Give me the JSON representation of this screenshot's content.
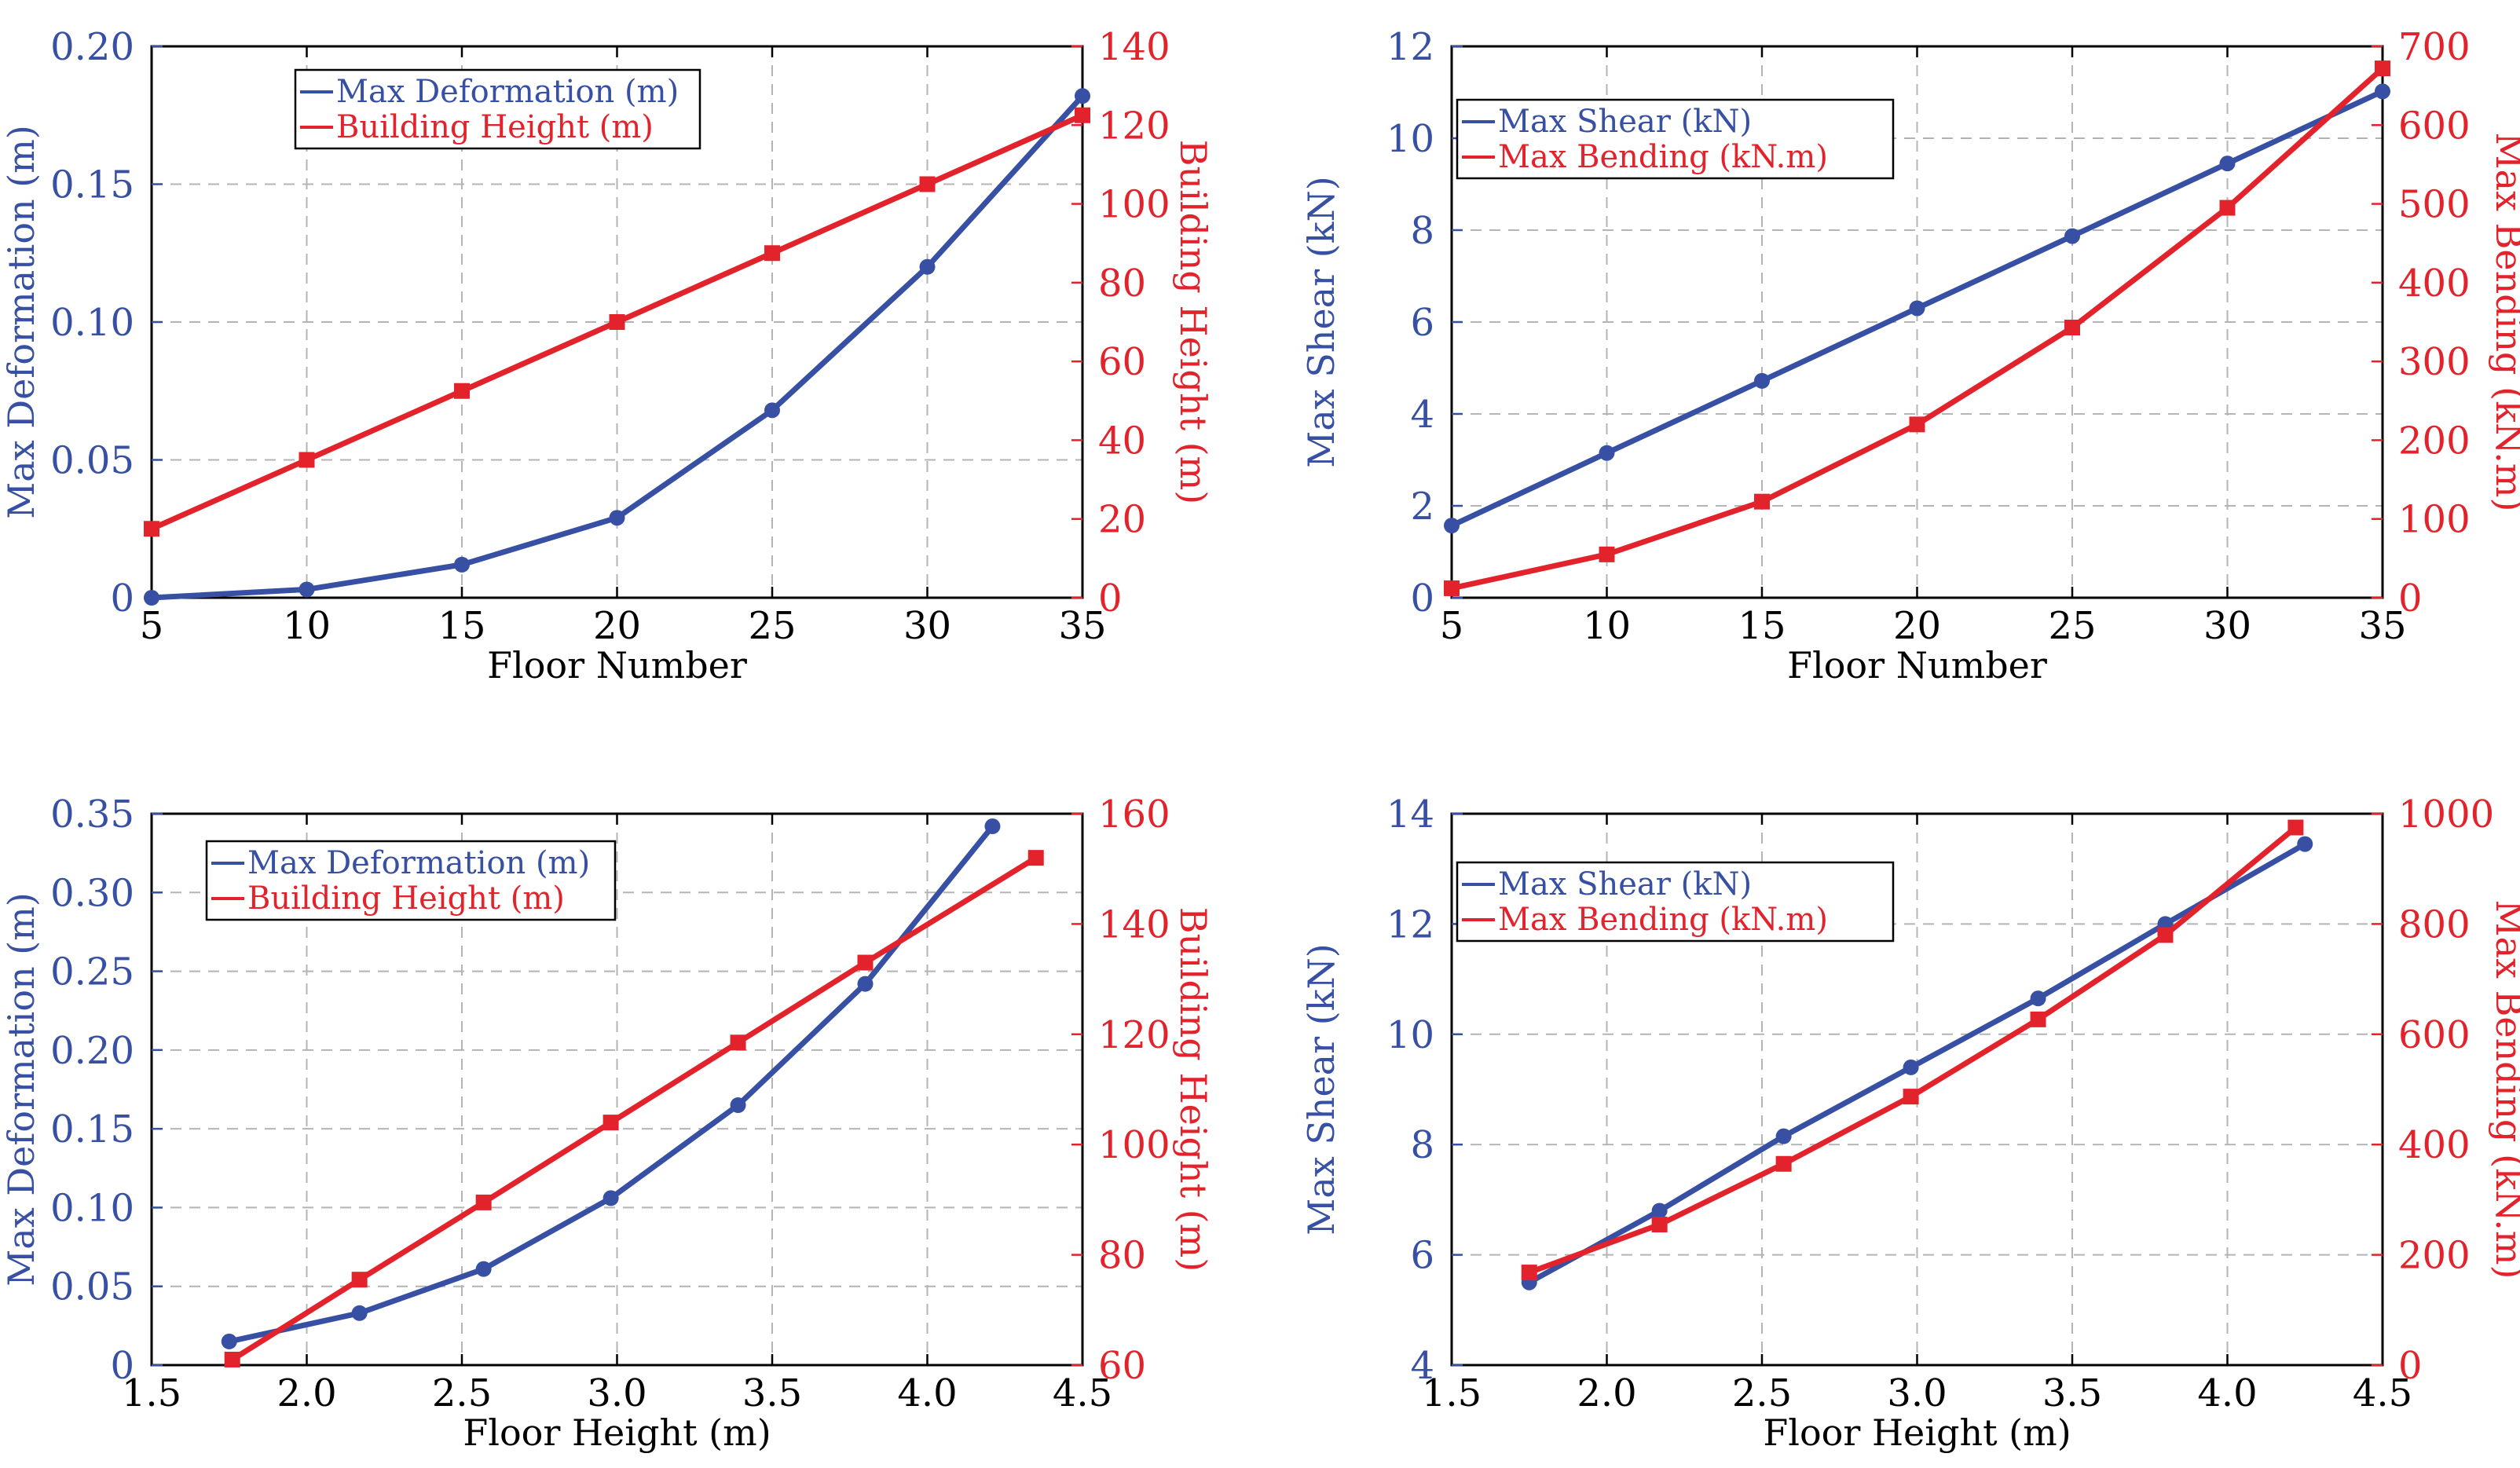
{
  "colors": {
    "blue": "#3750a3",
    "red": "#e3232c",
    "grid": "#b4b4b4",
    "axis": "#000000"
  },
  "chart_data": [
    {
      "type": "line",
      "panel": "top-left",
      "xlabel": "Floor Number",
      "ylabel_left": "Max Deformation (m)",
      "ylabel_right": "Building Height (m)",
      "xlim": [
        5,
        35
      ],
      "xticks": [
        "5",
        "10",
        "15",
        "20",
        "25",
        "30",
        "35"
      ],
      "ylim_left": [
        0,
        0.2
      ],
      "yticks_left": [
        "0",
        "0.05",
        "0.10",
        "0.15",
        "0.20"
      ],
      "ylim_right": [
        0,
        140
      ],
      "yticks_right": [
        "0",
        "20",
        "40",
        "60",
        "80",
        "100",
        "120",
        "140"
      ],
      "grid": true,
      "legend": "top-center",
      "series": [
        {
          "name": "Max Deformation (m)",
          "axis": "left",
          "color": "#3750a3",
          "marker": "circle",
          "x": [
            5,
            10,
            15,
            20,
            25,
            30,
            35
          ],
          "y": [
            0.0,
            0.003,
            0.012,
            0.029,
            0.068,
            0.12,
            0.182
          ]
        },
        {
          "name": "Building Height (m)",
          "axis": "right",
          "color": "#e3232c",
          "marker": "square",
          "x": [
            5,
            10,
            15,
            20,
            25,
            30,
            35
          ],
          "y": [
            17.5,
            35,
            52.5,
            70,
            87.5,
            105,
            122.5
          ]
        }
      ]
    },
    {
      "type": "line",
      "panel": "top-right",
      "xlabel": "Floor Number",
      "ylabel_left": "Max Shear (kN)",
      "ylabel_right": "Max Bending (kN.m)",
      "xlim": [
        5,
        35
      ],
      "xticks": [
        "5",
        "10",
        "15",
        "20",
        "25",
        "30",
        "35"
      ],
      "ylim_left": [
        0,
        12
      ],
      "yticks_left": [
        "0",
        "2",
        "4",
        "6",
        "8",
        "10",
        "12"
      ],
      "ylim_right": [
        0,
        700
      ],
      "yticks_right": [
        "0",
        "100",
        "200",
        "300",
        "400",
        "500",
        "600",
        "700"
      ],
      "grid": true,
      "legend": "top-left",
      "series": [
        {
          "name": "Max Shear (kN)",
          "axis": "left",
          "color": "#3750a3",
          "marker": "circle",
          "x": [
            5,
            10,
            15,
            20,
            25,
            30,
            35
          ],
          "y": [
            1.57,
            3.15,
            4.72,
            6.3,
            7.87,
            9.45,
            11.02
          ]
        },
        {
          "name": "Max Bending (kN.m)",
          "axis": "right",
          "color": "#e3232c",
          "marker": "square",
          "x": [
            5,
            10,
            15,
            20,
            25,
            30,
            35
          ],
          "y": [
            12,
            55,
            122,
            220,
            343,
            495,
            672
          ]
        }
      ]
    },
    {
      "type": "line",
      "panel": "bottom-left",
      "xlabel": "Floor Height (m)",
      "ylabel_left": "Max Deformation (m)",
      "ylabel_right": "Building Height (m)",
      "xlim": [
        1.5,
        4.5
      ],
      "xticks": [
        "1.5",
        "2.0",
        "2.5",
        "3.0",
        "3.5",
        "4.0",
        "4.5"
      ],
      "ylim_left": [
        0,
        0.35
      ],
      "yticks_left": [
        "0",
        "0.05",
        "0.10",
        "0.15",
        "0.20",
        "0.25",
        "0.30",
        "0.35"
      ],
      "ylim_right": [
        60,
        160
      ],
      "yticks_right": [
        "60",
        "80",
        "100",
        "120",
        "140",
        "160"
      ],
      "grid": true,
      "legend": "top-left",
      "series": [
        {
          "name": "Max Deformation (m)",
          "axis": "left",
          "color": "#3750a3",
          "marker": "circle",
          "x": [
            1.75,
            2.17,
            2.57,
            2.98,
            3.39,
            3.8,
            4.21
          ],
          "y": [
            0.015,
            0.033,
            0.061,
            0.106,
            0.165,
            0.242,
            0.342
          ]
        },
        {
          "name": "Building Height (m)",
          "axis": "right",
          "color": "#e3232c",
          "marker": "square",
          "x": [
            1.76,
            2.17,
            2.57,
            2.98,
            3.39,
            3.8,
            4.35
          ],
          "y": [
            61,
            75.5,
            89.5,
            104,
            118.5,
            133,
            152
          ]
        }
      ]
    },
    {
      "type": "line",
      "panel": "bottom-right",
      "xlabel": "Floor Height (m)",
      "ylabel_left": "Max Shear (kN)",
      "ylabel_right": "Max Bending (kN.m)",
      "xlim": [
        1.5,
        4.5
      ],
      "xticks": [
        "1.5",
        "2.0",
        "2.5",
        "3.0",
        "3.5",
        "4.0",
        "4.5"
      ],
      "ylim_left": [
        4,
        14
      ],
      "yticks_left": [
        "4",
        "6",
        "8",
        "10",
        "12",
        "14"
      ],
      "ylim_right": [
        0,
        1000
      ],
      "yticks_right": [
        "0",
        "200",
        "400",
        "600",
        "800",
        "1000"
      ],
      "grid": true,
      "legend": "top-left",
      "series": [
        {
          "name": "Max Shear (kN)",
          "axis": "left",
          "color": "#3750a3",
          "marker": "circle",
          "x": [
            1.75,
            2.17,
            2.57,
            2.98,
            3.39,
            3.8,
            4.25
          ],
          "y": [
            5.5,
            6.8,
            8.15,
            9.4,
            10.65,
            12.0,
            13.45
          ]
        },
        {
          "name": "Max Bending (kN.m)",
          "axis": "right",
          "color": "#e3232c",
          "marker": "square",
          "x": [
            1.75,
            2.17,
            2.57,
            2.98,
            3.39,
            3.8,
            4.22
          ],
          "y": [
            168,
            255,
            365,
            487,
            627,
            780,
            975
          ]
        }
      ]
    }
  ]
}
